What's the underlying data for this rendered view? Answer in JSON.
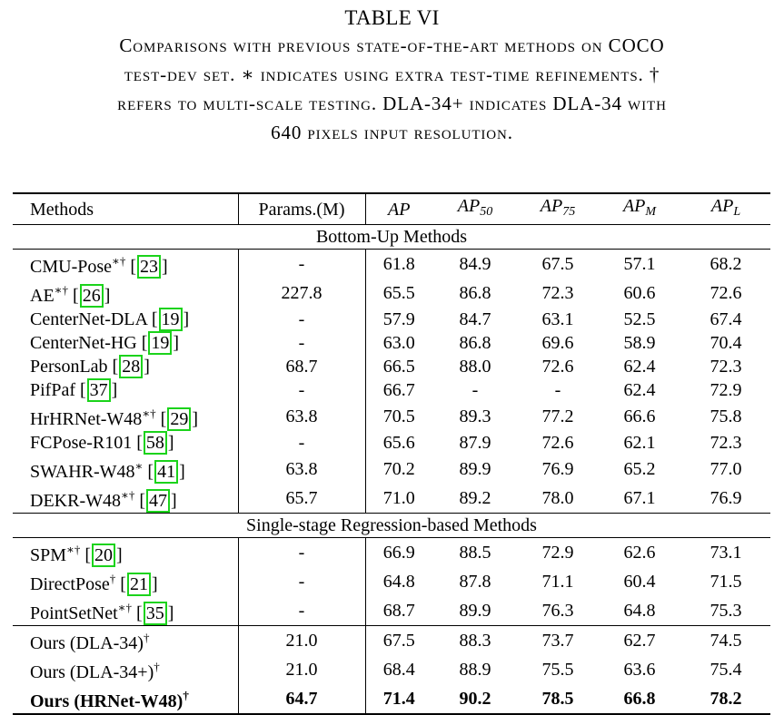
{
  "caption": {
    "table_number": "TABLE VI",
    "lines": [
      "Comparisons with previous state-of-the-art methods on COCO",
      "test-dev set. ∗ indicates using extra test-time refinements. †",
      "refers to multi-scale testing. DLA-34+ indicates DLA-34 with",
      "640 pixels input resolution."
    ]
  },
  "header": {
    "methods": "Methods",
    "params": "Params.(M)",
    "ap_main": "AP",
    "sub_50": "50",
    "sub_75": "75",
    "sub_m": "M",
    "sub_l": "L"
  },
  "sections": {
    "bottom_up": "Bottom-Up Methods",
    "single_stage": "Single-stage Regression-based Methods"
  },
  "rows": {
    "bottom_up": [
      {
        "name": "CMU-Pose",
        "marks": "∗†",
        "cite": "23",
        "params": "-",
        "ap": "61.8",
        "ap50": "84.9",
        "ap75": "67.5",
        "apm": "57.1",
        "apl": "68.2"
      },
      {
        "name": "AE",
        "marks": "∗†",
        "cite": "26",
        "params": "227.8",
        "ap": "65.5",
        "ap50": "86.8",
        "ap75": "72.3",
        "apm": "60.6",
        "apl": "72.6"
      },
      {
        "name": "CenterNet-DLA",
        "marks": "",
        "cite": "19",
        "params": "-",
        "ap": "57.9",
        "ap50": "84.7",
        "ap75": "63.1",
        "apm": "52.5",
        "apl": "67.4"
      },
      {
        "name": "CenterNet-HG",
        "marks": "",
        "cite": "19",
        "params": "-",
        "ap": "63.0",
        "ap50": "86.8",
        "ap75": "69.6",
        "apm": "58.9",
        "apl": "70.4"
      },
      {
        "name": "PersonLab",
        "marks": "",
        "cite": "28",
        "params": "68.7",
        "ap": "66.5",
        "ap50": "88.0",
        "ap75": "72.6",
        "apm": "62.4",
        "apl": "72.3"
      },
      {
        "name": "PifPaf",
        "marks": "",
        "cite": "37",
        "params": "-",
        "ap": "66.7",
        "ap50": "-",
        "ap75": "-",
        "apm": "62.4",
        "apl": "72.9"
      },
      {
        "name": "HrHRNet-W48",
        "marks": "∗†",
        "cite": "29",
        "params": "63.8",
        "ap": "70.5",
        "ap50": "89.3",
        "ap75": "77.2",
        "apm": "66.6",
        "apl": "75.8"
      },
      {
        "name": "FCPose-R101",
        "marks": "",
        "cite": "58",
        "params": "-",
        "ap": "65.6",
        "ap50": "87.9",
        "ap75": "72.6",
        "apm": "62.1",
        "apl": "72.3"
      },
      {
        "name": "SWAHR-W48",
        "marks": "∗",
        "cite": "41",
        "params": "63.8",
        "ap": "70.2",
        "ap50": "89.9",
        "ap75": "76.9",
        "apm": "65.2",
        "apl": "77.0"
      },
      {
        "name": "DEKR-W48",
        "marks": "∗†",
        "cite": "47",
        "params": "65.7",
        "ap": "71.0",
        "ap50": "89.2",
        "ap75": "78.0",
        "apm": "67.1",
        "apl": "76.9"
      }
    ],
    "single_stage": [
      {
        "name": "SPM",
        "marks": "∗†",
        "cite": "20",
        "params": "-",
        "ap": "66.9",
        "ap50": "88.5",
        "ap75": "72.9",
        "apm": "62.6",
        "apl": "73.1"
      },
      {
        "name": "DirectPose",
        "marks": "†",
        "cite": "21",
        "params": "-",
        "ap": "64.8",
        "ap50": "87.8",
        "ap75": "71.1",
        "apm": "60.4",
        "apl": "71.5"
      },
      {
        "name": "PointSetNet",
        "marks": "∗†",
        "cite": "35",
        "params": "-",
        "ap": "68.7",
        "ap50": "89.9",
        "ap75": "76.3",
        "apm": "64.8",
        "apl": "75.3"
      }
    ],
    "ours": [
      {
        "name": "Ours (DLA-34)",
        "marks": "†",
        "params": "21.0",
        "ap": "67.5",
        "ap50": "88.3",
        "ap75": "73.7",
        "apm": "62.7",
        "apl": "74.5"
      },
      {
        "name": "Ours (DLA-34+)",
        "marks": "†",
        "params": "21.0",
        "ap": "68.4",
        "ap50": "88.9",
        "ap75": "75.5",
        "apm": "63.6",
        "apl": "75.4"
      },
      {
        "name": "Ours (HRNet-W48)",
        "marks": "†",
        "params": "64.7",
        "ap": "71.4",
        "ap50": "90.2",
        "ap75": "78.5",
        "apm": "66.8",
        "apl": "78.2"
      }
    ]
  }
}
